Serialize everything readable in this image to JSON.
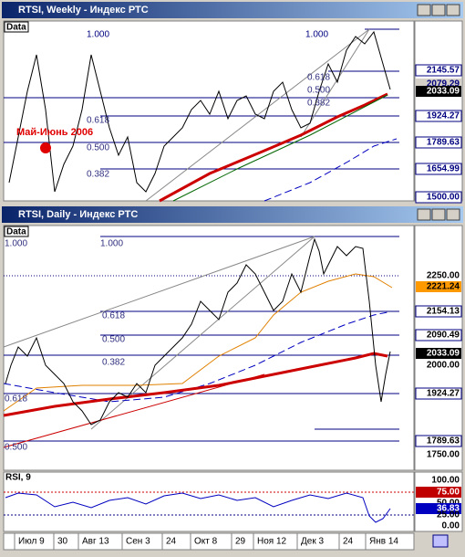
{
  "windows": [
    {
      "title": "RTSI, Weekly - Индекс РТС",
      "panel_label": "Data",
      "price_labels": [
        "2145.57",
        "2079.29",
        "2033.09",
        "1924.27",
        "1789.63",
        "1654.99",
        "1500.00"
      ],
      "fib_labels": [
        "1.000",
        "1.000",
        "0.618",
        "0.500",
        "0.382",
        "0.618",
        "0.500",
        "0.382"
      ],
      "annotation": "Май-Июнь 2006"
    },
    {
      "title": "RTSI, Daily - Индекс РТС",
      "panel_label": "Data",
      "price_labels": [
        "2250.00",
        "2221.24",
        "2154.13",
        "2090.49",
        "2033.09",
        "2000.00",
        "1924.27",
        "1789.63",
        "1750.00"
      ],
      "fib_labels": [
        "1.000",
        "1.000",
        "0.618",
        "0.500",
        "0.382",
        "0.618",
        "0.500"
      ],
      "rsi": {
        "label": "RSI, 9",
        "labels": [
          "100.00",
          "75.00",
          "50.00",
          "36.83",
          "25.00",
          "0.00"
        ]
      },
      "date_labels": [
        "Июл 9",
        "30",
        "Авг 13",
        "Сен 3",
        "24",
        "Окт 8",
        "29",
        "Ноя 12",
        "Дек 3",
        "24",
        "Янв 14"
      ]
    }
  ]
}
